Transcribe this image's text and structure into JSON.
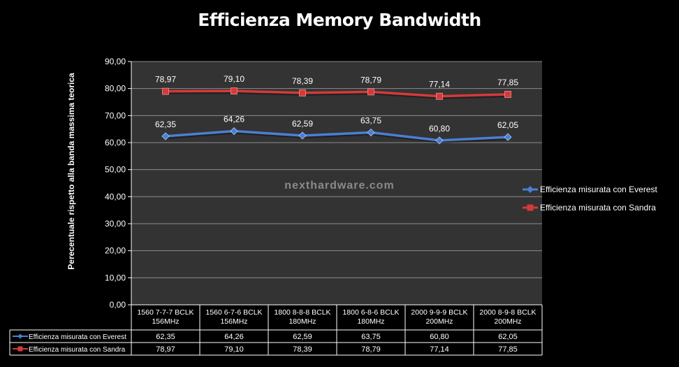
{
  "chart_data": {
    "type": "line",
    "title": "Efficienza Memory Bandwidth",
    "ylabel": "Perecentuale rispetto alla banda massima teorica",
    "xlabel": "",
    "ylim": [
      0,
      90
    ],
    "ytick_step": 10,
    "yticks": [
      "0,00",
      "10,00",
      "20,00",
      "30,00",
      "40,00",
      "50,00",
      "60,00",
      "70,00",
      "80,00",
      "90,00"
    ],
    "categories": [
      [
        "1560 7-7-7 BCLK",
        "156MHz"
      ],
      [
        "1560 6-7-6 BCLK",
        "156MHz"
      ],
      [
        "1800 8-8-8 BCLK",
        "180MHz"
      ],
      [
        "1800 6-8-6 BCLK",
        "180MHz"
      ],
      [
        "2000 9-9-9 BCLK",
        "200MHz"
      ],
      [
        "2000 8-9-8 BCLK",
        "200MHz"
      ]
    ],
    "series": [
      {
        "name": "Efficienza misurata con Everest",
        "values": [
          62.35,
          64.26,
          62.59,
          63.75,
          60.8,
          62.05
        ],
        "labels": [
          "62,35",
          "64,26",
          "62,59",
          "63,75",
          "60,80",
          "62,05"
        ],
        "color": "#4a7fd4",
        "marker": "diamond"
      },
      {
        "name": "Efficienza misurata con Sandra",
        "values": [
          78.97,
          79.1,
          78.39,
          78.79,
          77.14,
          77.85
        ],
        "labels": [
          "78,97",
          "79,10",
          "78,39",
          "78,79",
          "77,14",
          "77,85"
        ],
        "color": "#d43a3a",
        "marker": "square"
      }
    ],
    "grid": true,
    "legend_position": "right",
    "plot_background": "#333333",
    "data_table": true
  },
  "watermark": "nexthardware.com"
}
